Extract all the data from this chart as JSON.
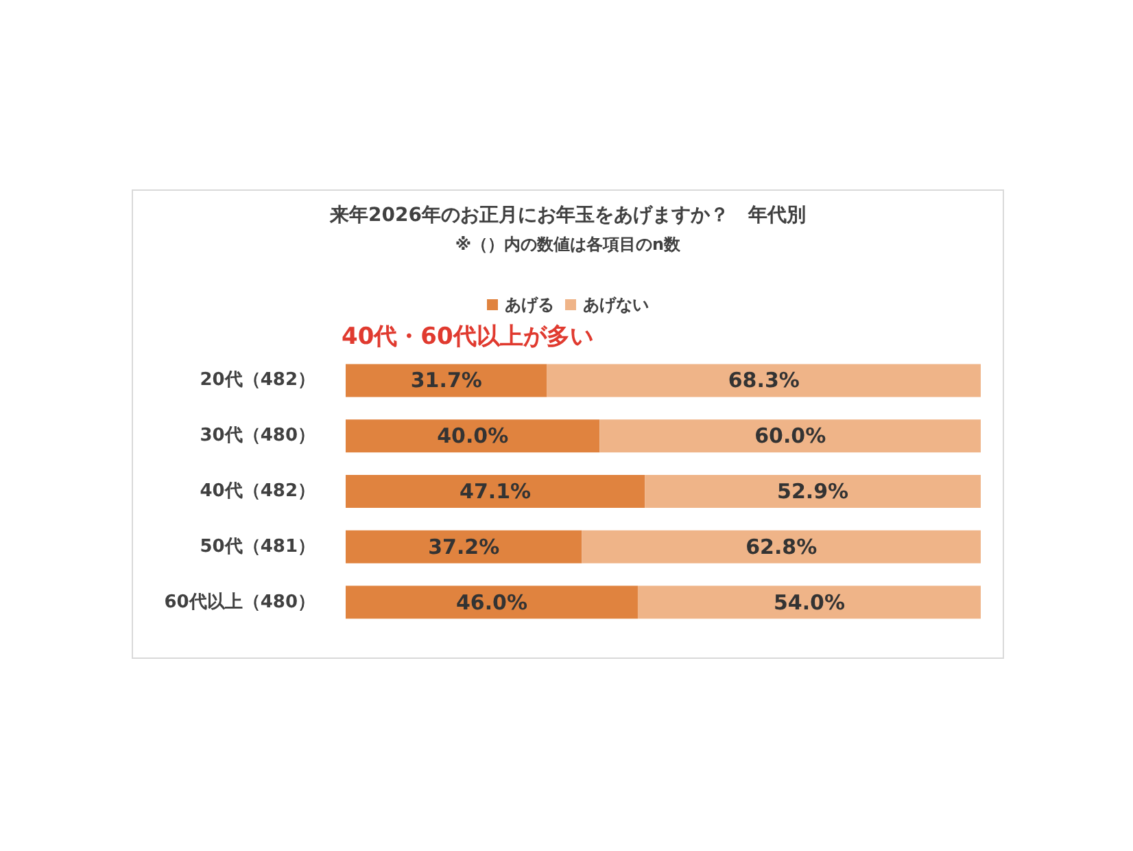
{
  "chart_data": {
    "type": "bar",
    "orientation": "horizontal",
    "stacked": true,
    "title": "来年2026年のお正月にお年玉をあげますか？　年代別",
    "subtitle": "※（）内の数値は各項目のn数",
    "annotations": [
      "40代・60代以上が多い"
    ],
    "categories": [
      "20代（482）",
      "30代（480）",
      "40代（482）",
      "50代（481）",
      "60代以上（480）"
    ],
    "series": [
      {
        "name": "あげる",
        "color": "#e0833f",
        "values": [
          31.7,
          40.0,
          47.1,
          37.2,
          46.0
        ],
        "value_labels": [
          "31.7%",
          "40.0%",
          "47.1%",
          "37.2%",
          "46.0%"
        ]
      },
      {
        "name": "あげない",
        "color": "#efb488",
        "values": [
          68.3,
          60.0,
          52.9,
          62.8,
          54.0
        ],
        "value_labels": [
          "68.3%",
          "60.0%",
          "52.9%",
          "62.8%",
          "54.0%"
        ]
      }
    ],
    "legend": "top"
  }
}
